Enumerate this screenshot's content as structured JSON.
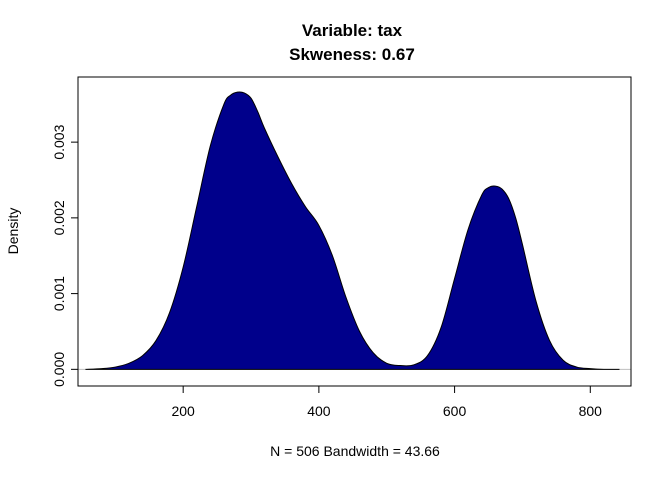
{
  "chart_data": {
    "type": "area",
    "title": "Variable: tax",
    "subtitle": "Skweness: 0.67",
    "xlabel": "N = 506   Bandwidth = 43.66",
    "ylabel": "Density",
    "xlim": [
      45,
      860
    ],
    "ylim": [
      -0.00022,
      0.00386
    ],
    "x_ticks": [
      200,
      400,
      600,
      800
    ],
    "x_tick_labels": [
      "200",
      "400",
      "600",
      "800"
    ],
    "y_ticks": [
      0.0,
      0.001,
      0.002,
      0.003
    ],
    "y_tick_labels": [
      "0.000",
      "0.001",
      "0.002",
      "0.003"
    ],
    "fill_color": "#00008B",
    "baseline_color": "#BEBEBE",
    "grid": false,
    "x": [
      56,
      80,
      100,
      120,
      140,
      160,
      180,
      200,
      220,
      240,
      260,
      270,
      280,
      290,
      300,
      310,
      320,
      340,
      360,
      380,
      400,
      420,
      440,
      460,
      480,
      500,
      520,
      540,
      560,
      580,
      600,
      620,
      640,
      650,
      660,
      670,
      680,
      690,
      700,
      720,
      740,
      760,
      780,
      800,
      820,
      843
    ],
    "y": [
      0.0,
      1e-05,
      3e-05,
      8e-05,
      0.00018,
      0.00038,
      0.00075,
      0.00135,
      0.00215,
      0.00295,
      0.0035,
      0.00362,
      0.00366,
      0.00365,
      0.00358,
      0.0034,
      0.00318,
      0.0028,
      0.00245,
      0.00215,
      0.0019,
      0.0015,
      0.00095,
      0.0005,
      0.00022,
      8e-05,
      5e-05,
      6e-05,
      0.00018,
      0.00055,
      0.0012,
      0.00185,
      0.0023,
      0.0024,
      0.00242,
      0.00238,
      0.00225,
      0.002,
      0.00165,
      0.0009,
      0.00038,
      0.00012,
      3e-05,
      1e-05,
      0.0,
      0.0
    ]
  }
}
